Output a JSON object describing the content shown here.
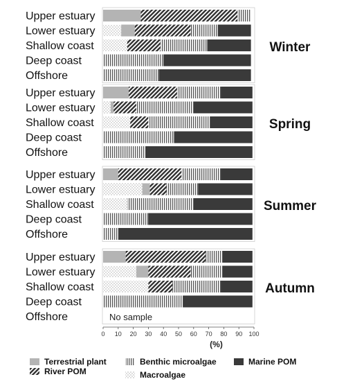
{
  "chart_data": {
    "type": "bar",
    "stacked": true,
    "orientation": "horizontal",
    "x_unit_label": "(%)",
    "xlim": [
      0,
      100
    ],
    "x_ticks": [
      0,
      10,
      20,
      30,
      40,
      50,
      60,
      70,
      80,
      90,
      100
    ],
    "components": [
      {
        "key": "terrestrial",
        "name": "Terrestrial plant",
        "color": "#b4b4b4",
        "pattern": "solid"
      },
      {
        "key": "river",
        "name": "River POM",
        "color": "#333333",
        "pattern": "diagonal"
      },
      {
        "key": "benthic",
        "name": "Benthic microalgae",
        "color": "#555555",
        "pattern": "vertical"
      },
      {
        "key": "macroalgae",
        "name": "Macroalgae",
        "color": "#888888",
        "pattern": "dots"
      },
      {
        "key": "marine",
        "name": "Marine POM",
        "color": "#3a3a3a",
        "pattern": "solid"
      }
    ],
    "panels": [
      {
        "season": "Winter",
        "categories": [
          "Upper estuary",
          "Lower estuary",
          "Shallow coast",
          "Deep coast",
          "Offshore"
        ],
        "rows": [
          [
            {
              "c": "terrestrial",
              "v": 25
            },
            {
              "c": "river",
              "v": 64
            },
            {
              "c": "benthic",
              "v": 9
            }
          ],
          [
            {
              "c": "macroalgae",
              "v": 12
            },
            {
              "c": "terrestrial",
              "v": 9
            },
            {
              "c": "river",
              "v": 37
            },
            {
              "c": "benthic",
              "v": 18
            },
            {
              "c": "marine",
              "v": 22
            }
          ],
          [
            {
              "c": "macroalgae",
              "v": 16
            },
            {
              "c": "river",
              "v": 22
            },
            {
              "c": "benthic",
              "v": 31
            },
            {
              "c": "marine",
              "v": 29
            }
          ],
          [
            {
              "c": "benthic",
              "v": 40
            },
            {
              "c": "marine",
              "v": 58
            }
          ],
          [
            {
              "c": "benthic",
              "v": 37
            },
            {
              "c": "marine",
              "v": 61
            }
          ]
        ]
      },
      {
        "season": "Spring",
        "categories": [
          "Upper estuary",
          "Lower estuary",
          "Shallow coast",
          "Deep coast",
          "Offshore"
        ],
        "rows": [
          [
            {
              "c": "terrestrial",
              "v": 17
            },
            {
              "c": "river",
              "v": 32
            },
            {
              "c": "benthic",
              "v": 29
            },
            {
              "c": "marine",
              "v": 21
            }
          ],
          [
            {
              "c": "macroalgae",
              "v": 5
            },
            {
              "c": "terrestrial",
              "v": 2
            },
            {
              "c": "river",
              "v": 15
            },
            {
              "c": "benthic",
              "v": 38
            },
            {
              "c": "marine",
              "v": 39
            }
          ],
          [
            {
              "c": "macroalgae",
              "v": 18
            },
            {
              "c": "river",
              "v": 12
            },
            {
              "c": "benthic",
              "v": 41
            },
            {
              "c": "marine",
              "v": 28
            }
          ],
          [
            {
              "c": "benthic",
              "v": 47
            },
            {
              "c": "marine",
              "v": 52
            }
          ],
          [
            {
              "c": "benthic",
              "v": 28
            },
            {
              "c": "marine",
              "v": 71
            }
          ]
        ]
      },
      {
        "season": "Summer",
        "categories": [
          "Upper estuary",
          "Lower estuary",
          "Shallow coast",
          "Deep coast",
          "Offshore"
        ],
        "rows": [
          [
            {
              "c": "terrestrial",
              "v": 10
            },
            {
              "c": "river",
              "v": 42
            },
            {
              "c": "benthic",
              "v": 26
            },
            {
              "c": "marine",
              "v": 21
            }
          ],
          [
            {
              "c": "macroalgae",
              "v": 26
            },
            {
              "c": "terrestrial",
              "v": 5
            },
            {
              "c": "river",
              "v": 11
            },
            {
              "c": "benthic",
              "v": 21
            },
            {
              "c": "marine",
              "v": 36
            }
          ],
          [
            {
              "c": "macroalgae",
              "v": 16
            },
            {
              "c": "benthic",
              "v": 44
            },
            {
              "c": "marine",
              "v": 39
            }
          ],
          [
            {
              "c": "benthic",
              "v": 30
            },
            {
              "c": "marine",
              "v": 69
            }
          ],
          [
            {
              "c": "benthic",
              "v": 10
            },
            {
              "c": "marine",
              "v": 89
            }
          ]
        ]
      },
      {
        "season": "Autumn",
        "categories": [
          "Upper estuary",
          "Lower estuary",
          "Shallow coast",
          "Deep coast",
          "Offshore"
        ],
        "rows": [
          [
            {
              "c": "terrestrial",
              "v": 15
            },
            {
              "c": "river",
              "v": 53
            },
            {
              "c": "benthic",
              "v": 11
            },
            {
              "c": "marine",
              "v": 20
            }
          ],
          [
            {
              "c": "macroalgae",
              "v": 22
            },
            {
              "c": "terrestrial",
              "v": 8
            },
            {
              "c": "river",
              "v": 28
            },
            {
              "c": "benthic",
              "v": 21
            },
            {
              "c": "marine",
              "v": 20
            }
          ],
          [
            {
              "c": "macroalgae",
              "v": 30
            },
            {
              "c": "river",
              "v": 16
            },
            {
              "c": "benthic",
              "v": 32
            },
            {
              "c": "marine",
              "v": 21
            }
          ],
          [
            {
              "c": "benthic",
              "v": 53
            },
            {
              "c": "marine",
              "v": 46
            }
          ],
          []
        ],
        "notes": [
          {
            "row": 4,
            "text": "No sample"
          }
        ]
      }
    ]
  }
}
